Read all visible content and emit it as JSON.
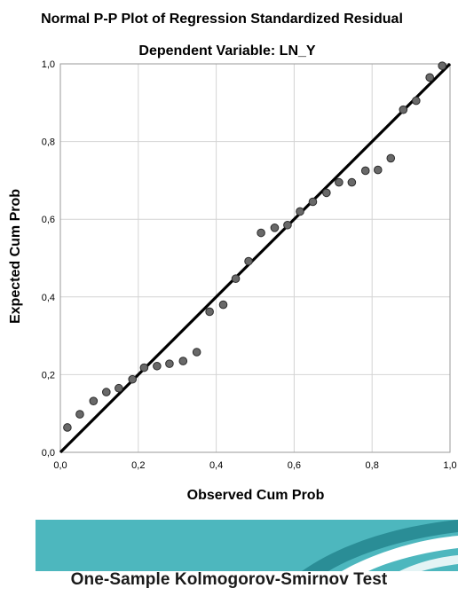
{
  "chart_data": {
    "type": "scatter",
    "title": "Normal P-P Plot of Regression Standardized Residual",
    "subtitle": "Dependent Variable: LN_Y",
    "xlabel": "Observed Cum Prob",
    "ylabel": "Expected Cum Prob",
    "xlim": [
      0.0,
      1.0
    ],
    "ylim": [
      0.0,
      1.0
    ],
    "xticks": [
      "0,0",
      "0,2",
      "0,4",
      "0,6",
      "0,8",
      "1,0"
    ],
    "yticks": [
      "0,0",
      "0,2",
      "0,4",
      "0,6",
      "0,8",
      "1,0"
    ],
    "grid": true,
    "reference_line": {
      "from": [
        0,
        0
      ],
      "to": [
        1,
        1
      ]
    },
    "points": {
      "x": [
        0.018,
        0.05,
        0.085,
        0.118,
        0.15,
        0.185,
        0.215,
        0.248,
        0.28,
        0.315,
        0.35,
        0.383,
        0.418,
        0.45,
        0.483,
        0.515,
        0.55,
        0.583,
        0.615,
        0.648,
        0.683,
        0.715,
        0.748,
        0.783,
        0.815,
        0.848,
        0.88,
        0.913,
        0.948,
        0.98
      ],
      "y": [
        0.064,
        0.098,
        0.132,
        0.155,
        0.165,
        0.188,
        0.218,
        0.222,
        0.228,
        0.235,
        0.258,
        0.362,
        0.38,
        0.447,
        0.492,
        0.565,
        0.578,
        0.585,
        0.62,
        0.645,
        0.668,
        0.695,
        0.695,
        0.725,
        0.727,
        0.757,
        0.882,
        0.905,
        0.965,
        0.995
      ]
    },
    "colors": {
      "point_fill": "#696969",
      "point_stroke": "#2b2b2b",
      "line": "#000000",
      "grid": "#d4d4d4",
      "frame": "#9a9a9a"
    }
  },
  "banner": {
    "colors": {
      "light": "#4db7be",
      "dark": "#2a8d96"
    }
  },
  "footer": {
    "title": "One-Sample Kolmogorov-Smirnov Test"
  }
}
